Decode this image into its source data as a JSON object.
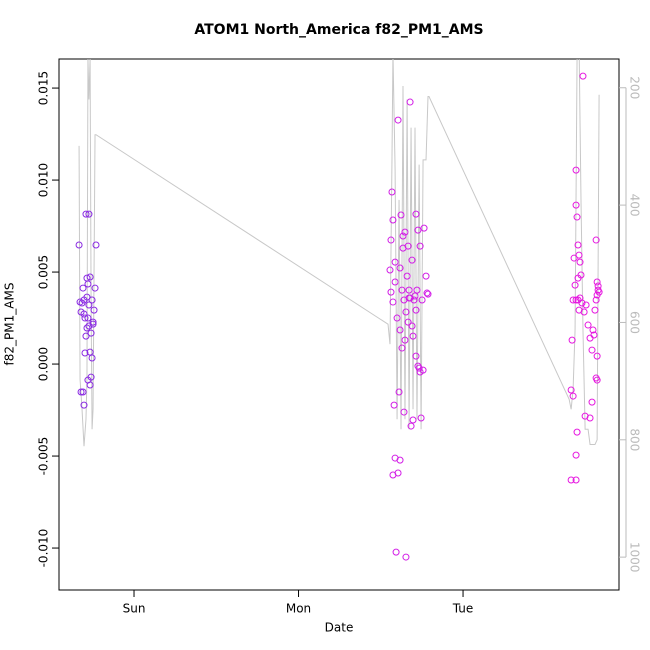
{
  "chart_data": {
    "type": "scatter",
    "title": "ATOM1 North_America f82_PM1_AMS",
    "x_label": "Date",
    "y_label": "f82_PM1_AMS",
    "xlim": [
      -0.456,
      2.948
    ],
    "xticks": [
      {
        "value": 0,
        "label": "Sun"
      },
      {
        "value": 1,
        "label": "Mon"
      },
      {
        "value": 2,
        "label": "Tue"
      }
    ],
    "ylim": [
      -0.01228,
      0.01658
    ],
    "yticks": [
      {
        "value": -0.01,
        "label": "-0.010"
      },
      {
        "value": -0.005,
        "label": "-0.005"
      },
      {
        "value": 0,
        "label": "0.000"
      },
      {
        "value": 0.005,
        "label": "0.005"
      },
      {
        "value": 0.01,
        "label": "0.010"
      },
      {
        "value": 0.015,
        "label": "0.015"
      }
    ],
    "y2lim": [
      1056,
      151
    ],
    "y2ticks": [
      200,
      400,
      600,
      800,
      1000
    ],
    "y2_tick_color": "#bbbbbb",
    "series": [
      {
        "color": "#8a2be2",
        "x": [
          -0.334,
          -0.328,
          -0.316,
          -0.322,
          -0.304,
          -0.298,
          -0.31,
          -0.286,
          -0.292,
          -0.274,
          -0.267,
          -0.28,
          -0.286,
          -0.274,
          -0.255,
          -0.243,
          -0.249,
          -0.237,
          -0.231,
          -0.267,
          -0.255,
          -0.28,
          -0.261,
          -0.298,
          -0.292,
          -0.31,
          -0.304,
          -0.322,
          -0.267,
          -0.286,
          -0.249,
          -0.28,
          -0.261,
          -0.304,
          -0.274
        ],
        "values": [
          0.00647,
          0.00337,
          0.00332,
          0.00283,
          0.00348,
          0.0025,
          0.00413,
          0.00467,
          0.00815,
          0.00815,
          0.00473,
          0.00435,
          0.00364,
          0.00321,
          0.00348,
          0.00293,
          0.00228,
          0.00413,
          0.00647,
          0.00065,
          0.00033,
          -0.00087,
          -0.00071,
          0.0006,
          0.00152,
          -0.00152,
          -0.00223,
          -0.00152,
          -0.00114,
          0.00196,
          0.00217,
          0.0025,
          0.00168,
          0.00272,
          0.00207
        ]
      },
      {
        "color": "#d21ee6",
        "x": [
          1.568,
          1.574,
          1.562,
          1.556,
          1.587,
          1.605,
          1.623,
          1.635,
          1.617,
          1.647,
          1.666,
          1.629,
          1.641,
          1.66,
          1.678,
          1.69,
          1.702,
          1.714,
          1.726,
          1.739,
          1.751,
          1.763,
          1.775,
          1.787,
          1.678,
          1.708,
          1.562,
          1.574,
          1.599,
          1.617,
          1.647,
          1.666,
          1.696,
          1.714,
          1.726,
          1.739,
          1.757,
          1.581,
          1.611,
          1.629,
          1.641,
          1.653,
          1.672,
          1.684,
          1.696,
          1.714,
          1.733,
          1.745,
          1.587,
          1.605,
          1.617,
          1.574,
          1.593,
          1.653,
          1.635,
          1.672,
          1.69,
          1.587,
          1.781,
          1.72
        ],
        "values": [
          0.00935,
          0.00783,
          0.00674,
          0.00511,
          0.00554,
          0.01326,
          0.0081,
          0.0063,
          0.00522,
          0.00717,
          0.00641,
          0.00402,
          0.00348,
          0.00478,
          0.00359,
          0.00565,
          0.00348,
          0.00815,
          0.00728,
          0.00641,
          0.00348,
          0.00739,
          0.00478,
          0.0038,
          0.01424,
          0.0037,
          0.00391,
          0.00337,
          0.0025,
          0.00185,
          0.0013,
          0.00228,
          0.00152,
          0.00043,
          -0.00011,
          -0.00043,
          -0.00033,
          -0.00223,
          -0.00152,
          0.00087,
          -0.00261,
          0.00283,
          0.00359,
          -0.00337,
          -0.00304,
          0.00293,
          -0.00022,
          -0.00293,
          -0.00511,
          -0.00592,
          -0.00522,
          -0.00603,
          -0.01022,
          -0.01049,
          0.00696,
          0.00402,
          0.00207,
          0.00446,
          0.00386,
          0.00402
        ]
      },
      {
        "color": "#e619e0",
        "x": [
          2.687,
          2.687,
          2.693,
          2.699,
          2.705,
          2.711,
          2.717,
          2.675,
          2.681,
          2.687,
          2.669,
          2.699,
          2.705,
          2.723,
          2.729,
          2.736,
          2.748,
          2.76,
          2.772,
          2.784,
          2.809,
          2.815,
          2.821,
          2.821,
          2.815,
          2.827,
          2.809,
          2.802,
          2.79,
          2.796,
          2.815,
          2.809,
          2.815,
          2.663,
          2.657,
          2.669,
          2.693,
          2.687,
          2.657,
          2.687,
          2.742,
          2.772,
          2.784,
          2.711,
          2.699
        ],
        "values": [
          0.01054,
          0.00864,
          0.00799,
          0.00647,
          0.00592,
          0.00554,
          0.00484,
          0.00576,
          0.00429,
          0.00348,
          0.00348,
          0.00348,
          0.00293,
          0.00332,
          0.01565,
          0.00283,
          0.00321,
          0.00212,
          0.00141,
          0.00076,
          0.00674,
          0.00446,
          0.00424,
          0.00402,
          0.00375,
          0.00391,
          0.00348,
          0.00293,
          0.00185,
          0.00158,
          0.00043,
          -0.00076,
          -0.00087,
          0.0013,
          -0.00141,
          -0.00174,
          -0.0037,
          -0.00495,
          -0.0063,
          -0.0063,
          -0.00283,
          -0.00293,
          -0.00207,
          0.00359,
          0.00467
        ]
      },
      {
        "type": "line",
        "axis": "y2",
        "color": "#c8c8c8",
        "x": [
          -0.334,
          -0.328,
          -0.316,
          -0.304,
          -0.292,
          -0.286,
          -0.28,
          -0.274,
          -0.267,
          -0.261,
          -0.255,
          -0.249,
          -0.237,
          -0.231,
          1.544,
          1.556,
          1.568,
          1.574,
          1.587,
          1.599,
          1.611,
          1.623,
          1.635,
          1.647,
          1.66,
          1.672,
          1.684,
          1.696,
          1.708,
          1.72,
          1.733,
          1.745,
          1.757,
          1.775,
          1.787,
          1.793,
          2.645,
          2.657,
          2.669,
          2.681,
          2.693,
          2.705,
          2.717,
          2.729,
          2.742,
          2.76,
          2.772,
          2.784,
          2.802,
          2.815,
          2.827
        ],
        "values": [
          299,
          697,
          748,
          811,
          765,
          697,
          150,
          220,
          149,
          561,
          782,
          748,
          280,
          280,
          603,
          637,
          323,
          140,
          340,
          765,
          391,
          782,
          197,
          765,
          220,
          782,
          268,
          748,
          268,
          765,
          331,
          782,
          323,
          323,
          215,
          215,
          731,
          748,
          714,
          612,
          152,
          118,
          391,
          612,
          782,
          782,
          808,
          808,
          808,
          800,
          212
        ]
      }
    ]
  }
}
